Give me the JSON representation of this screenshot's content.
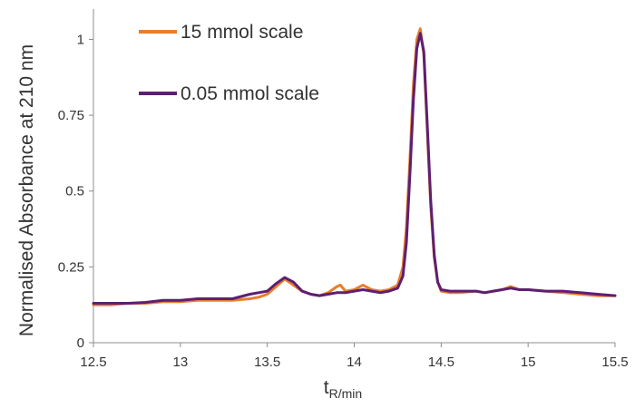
{
  "chart_data": {
    "type": "line",
    "xlabel_main": "t",
    "xlabel_sub": "R/min",
    "ylabel": "Normalised Absorbance at 210 nm",
    "xlim": [
      12.5,
      15.5
    ],
    "ylim": [
      0,
      1.1
    ],
    "xticks": [
      "12.5",
      "13",
      "13.5",
      "14",
      "14.5",
      "15",
      "15.5"
    ],
    "yticks": [
      "0",
      "0.25",
      "0.5",
      "0.75",
      "1"
    ],
    "grid": false,
    "legend_position": "top-left",
    "series": [
      {
        "name": "15 mmol scale",
        "color": "#e87e2b",
        "x": [
          12.5,
          12.6,
          12.7,
          12.8,
          12.9,
          13.0,
          13.1,
          13.2,
          13.3,
          13.4,
          13.45,
          13.5,
          13.55,
          13.6,
          13.65,
          13.7,
          13.75,
          13.8,
          13.85,
          13.9,
          13.92,
          13.95,
          14.0,
          14.05,
          14.1,
          14.15,
          14.2,
          14.25,
          14.28,
          14.3,
          14.32,
          14.34,
          14.36,
          14.38,
          14.4,
          14.42,
          14.44,
          14.46,
          14.48,
          14.5,
          14.55,
          14.6,
          14.7,
          14.75,
          14.8,
          14.85,
          14.9,
          14.95,
          15.0,
          15.1,
          15.2,
          15.3,
          15.4,
          15.5
        ],
        "y": [
          0.125,
          0.125,
          0.13,
          0.13,
          0.135,
          0.135,
          0.14,
          0.14,
          0.14,
          0.145,
          0.15,
          0.16,
          0.185,
          0.21,
          0.19,
          0.17,
          0.16,
          0.155,
          0.165,
          0.185,
          0.19,
          0.17,
          0.175,
          0.19,
          0.175,
          0.17,
          0.175,
          0.19,
          0.25,
          0.38,
          0.6,
          0.85,
          1.0,
          1.035,
          0.95,
          0.7,
          0.45,
          0.28,
          0.2,
          0.17,
          0.165,
          0.165,
          0.17,
          0.165,
          0.17,
          0.175,
          0.185,
          0.175,
          0.175,
          0.17,
          0.165,
          0.16,
          0.155,
          0.155
        ]
      },
      {
        "name": "0.05 mmol scale",
        "color": "#5e1f73",
        "x": [
          12.5,
          12.6,
          12.7,
          12.8,
          12.9,
          13.0,
          13.1,
          13.2,
          13.3,
          13.4,
          13.45,
          13.5,
          13.55,
          13.6,
          13.65,
          13.7,
          13.75,
          13.8,
          13.85,
          13.9,
          13.95,
          14.0,
          14.05,
          14.1,
          14.15,
          14.2,
          14.25,
          14.28,
          14.3,
          14.32,
          14.34,
          14.36,
          14.38,
          14.4,
          14.42,
          14.44,
          14.46,
          14.48,
          14.5,
          14.55,
          14.6,
          14.7,
          14.75,
          14.8,
          14.85,
          14.9,
          14.95,
          15.0,
          15.1,
          15.2,
          15.3,
          15.4,
          15.5
        ],
        "y": [
          0.13,
          0.13,
          0.13,
          0.133,
          0.14,
          0.14,
          0.145,
          0.145,
          0.145,
          0.16,
          0.165,
          0.17,
          0.195,
          0.215,
          0.2,
          0.17,
          0.16,
          0.155,
          0.16,
          0.165,
          0.165,
          0.17,
          0.175,
          0.17,
          0.165,
          0.17,
          0.18,
          0.22,
          0.33,
          0.55,
          0.8,
          0.97,
          1.02,
          0.96,
          0.72,
          0.47,
          0.29,
          0.2,
          0.175,
          0.17,
          0.17,
          0.17,
          0.165,
          0.17,
          0.175,
          0.18,
          0.175,
          0.175,
          0.17,
          0.17,
          0.165,
          0.16,
          0.155
        ]
      }
    ]
  }
}
